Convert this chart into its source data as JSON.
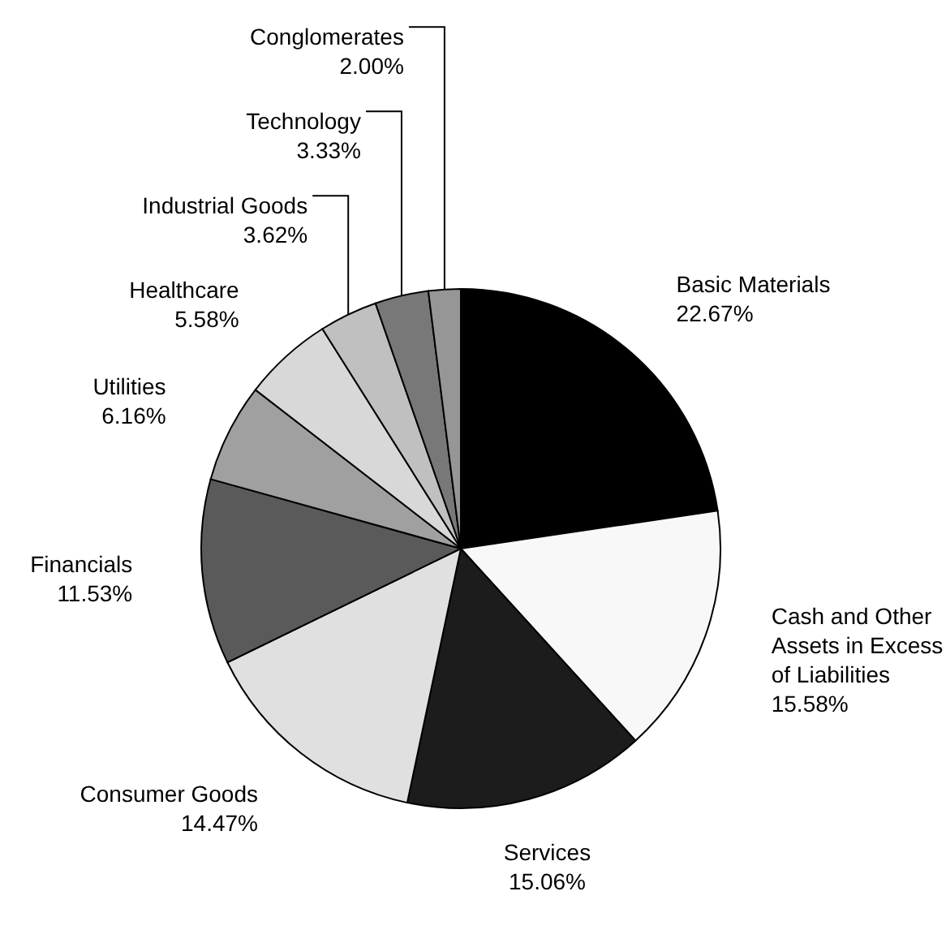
{
  "chart_data": {
    "type": "pie",
    "categories": [
      "Basic Materials",
      "Cash and Other Assets in Excess of Liabilities",
      "Services",
      "Consumer Goods",
      "Financials",
      "Utilities",
      "Healthcare",
      "Industrial Goods",
      "Technology",
      "Conglomerates"
    ],
    "values": [
      22.67,
      15.58,
      15.06,
      14.47,
      11.53,
      6.16,
      5.58,
      3.62,
      3.33,
      2.0
    ],
    "value_labels": [
      "22.67%",
      "15.58%",
      "15.06%",
      "14.47%",
      "11.53%",
      "6.16%",
      "5.58%",
      "3.62%",
      "3.33%",
      "2.00%"
    ],
    "colors": [
      "#000000",
      "#f8f8f8",
      "#1c1c1c",
      "#e0e0e0",
      "#5a5a5a",
      "#a0a0a0",
      "#d8d8d8",
      "#c0c0c0",
      "#787878",
      "#969696"
    ]
  }
}
